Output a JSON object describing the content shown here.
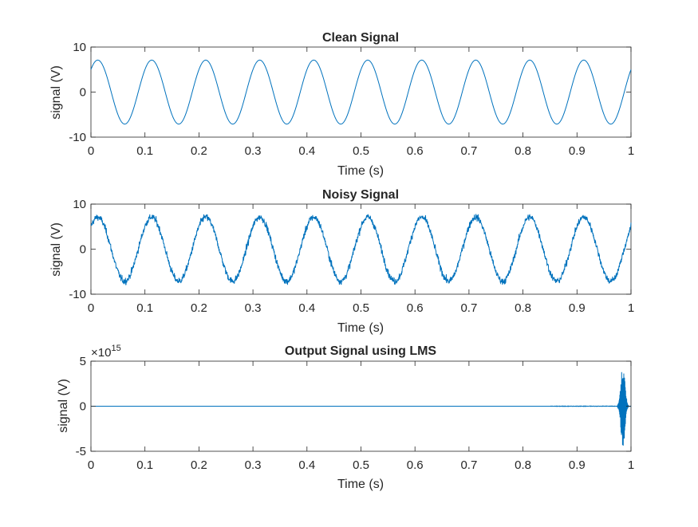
{
  "colors": {
    "line": "#0072BD",
    "axis": "#262626",
    "background": "#ffffff"
  },
  "chart_data": [
    {
      "type": "line",
      "title": "Clean Signal",
      "xlabel": "Time (s)",
      "ylabel": "signal (V)",
      "xlim": [
        0,
        1
      ],
      "ylim": [
        -10,
        10
      ],
      "xticks": [
        "0",
        "0.1",
        "0.2",
        "0.3",
        "0.4",
        "0.5",
        "0.6",
        "0.7",
        "0.8",
        "0.9",
        "1"
      ],
      "yticks": [
        "-10",
        "0",
        "10"
      ],
      "grid": false,
      "signal": {
        "amplitude": 7.1,
        "frequency_hz": 10,
        "start_value": 5.0,
        "noise": 0
      }
    },
    {
      "type": "line",
      "title": "Noisy Signal",
      "xlabel": "Time (s)",
      "ylabel": "signal (V)",
      "xlim": [
        0,
        1
      ],
      "ylim": [
        -10,
        10
      ],
      "xticks": [
        "0",
        "0.1",
        "0.2",
        "0.3",
        "0.4",
        "0.5",
        "0.6",
        "0.7",
        "0.8",
        "0.9",
        "1"
      ],
      "yticks": [
        "-10",
        "0",
        "10"
      ],
      "grid": false,
      "signal": {
        "amplitude": 7.1,
        "frequency_hz": 10,
        "start_value": 5.0,
        "noise": 1.0
      }
    },
    {
      "type": "line",
      "title": "Output Signal using LMS",
      "xlabel": "Time (s)",
      "ylabel": "signal (V)",
      "exponent_label": "×10",
      "exponent_power": "15",
      "xlim": [
        0,
        1
      ],
      "ylim": [
        -5,
        5
      ],
      "xticks": [
        "0",
        "0.1",
        "0.2",
        "0.3",
        "0.4",
        "0.5",
        "0.6",
        "0.7",
        "0.8",
        "0.9",
        "1"
      ],
      "yticks": [
        "-5",
        "0",
        "5"
      ],
      "grid": false,
      "signal": {
        "baseline": 0,
        "burst_center_s": 0.985,
        "burst_peak": 4.6,
        "burst_start_s": 0.975,
        "burst_end_s": 0.995
      }
    }
  ]
}
